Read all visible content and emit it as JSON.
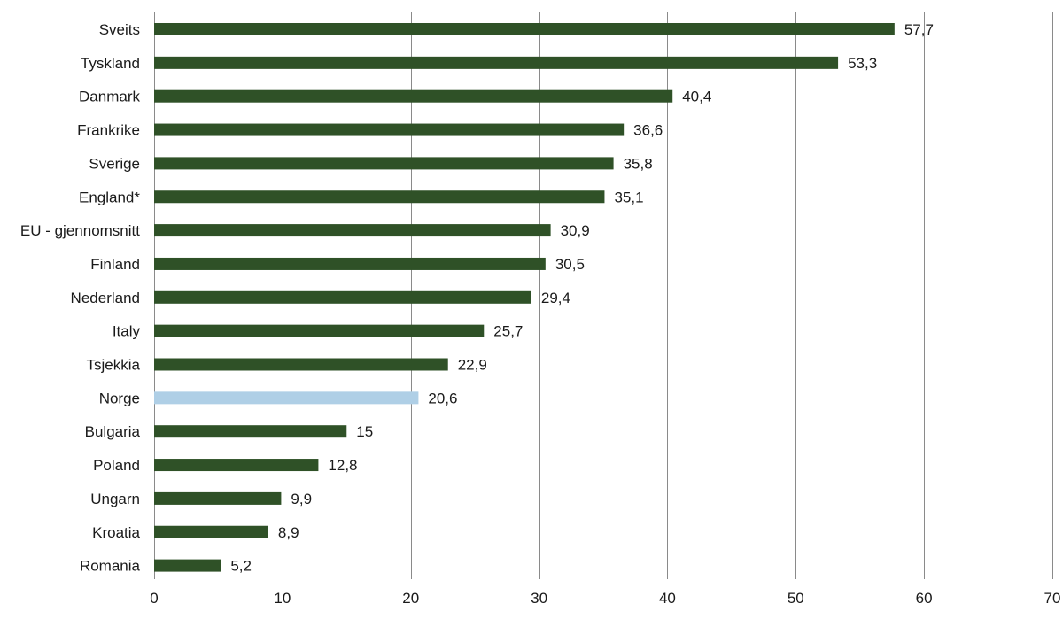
{
  "chart_data": {
    "type": "bar",
    "orientation": "horizontal",
    "categories": [
      "Sveits",
      "Tyskland",
      "Danmark",
      "Frankrike",
      "Sverige",
      "England*",
      "EU - gjennomsnitt",
      "Finland",
      "Nederland",
      "Italy",
      "Tsjekkia",
      "Norge",
      "Bulgaria",
      "Poland",
      "Ungarn",
      "Kroatia",
      "Romania"
    ],
    "values": [
      57.7,
      53.3,
      40.4,
      36.6,
      35.8,
      35.1,
      30.9,
      30.5,
      29.4,
      25.7,
      22.9,
      20.6,
      15,
      12.8,
      9.9,
      8.9,
      5.2
    ],
    "value_labels": [
      "57,7",
      "53,3",
      "40,4",
      "36,6",
      "35,8",
      "35,1",
      "30,9",
      "30,5",
      "29,4",
      "25,7",
      "22,9",
      "20,6",
      "15",
      "12,8",
      "9,9",
      "8,9",
      "5,2"
    ],
    "highlight_category": "Norge",
    "xlim": [
      0,
      70
    ],
    "x_ticks": [
      0,
      10,
      20,
      30,
      40,
      50,
      60,
      70
    ],
    "x_tick_labels": [
      "0",
      "10",
      "20",
      "30",
      "40",
      "50",
      "60",
      "70"
    ],
    "grid": "vertical",
    "title": "",
    "xlabel": "",
    "ylabel": "",
    "colors": {
      "bar": "#2f5127",
      "highlight": "#afcfe6",
      "grid": "#8a8a8a"
    }
  }
}
